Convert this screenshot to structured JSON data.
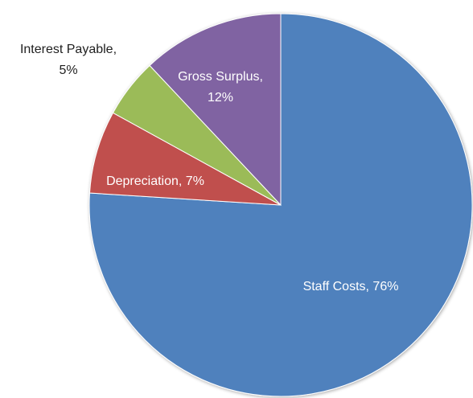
{
  "chart_data": {
    "type": "pie",
    "title": "",
    "slices": [
      {
        "name": "Staff Costs",
        "value": 76,
        "percent_label": "76%",
        "color": "#4f81bd",
        "label_color": "#ffffff",
        "label_inside": true
      },
      {
        "name": "Depreciation",
        "value": 7,
        "percent_label": "7%",
        "color": "#c0504d",
        "label_color": "#ffffff",
        "label_inside": true
      },
      {
        "name": "Interest Payable",
        "value": 5,
        "percent_label": "5%",
        "color": "#9bbb59",
        "label_color": "#1f1f1f",
        "label_inside": false
      },
      {
        "name": "Gross Surplus",
        "value": 12,
        "percent_label": "12%",
        "color": "#8064a2",
        "label_color": "#ffffff",
        "label_inside": true
      }
    ],
    "start_angle": "12 o'clock",
    "direction": "clockwise",
    "legend": "none",
    "data_labels": "category name and percentage"
  }
}
